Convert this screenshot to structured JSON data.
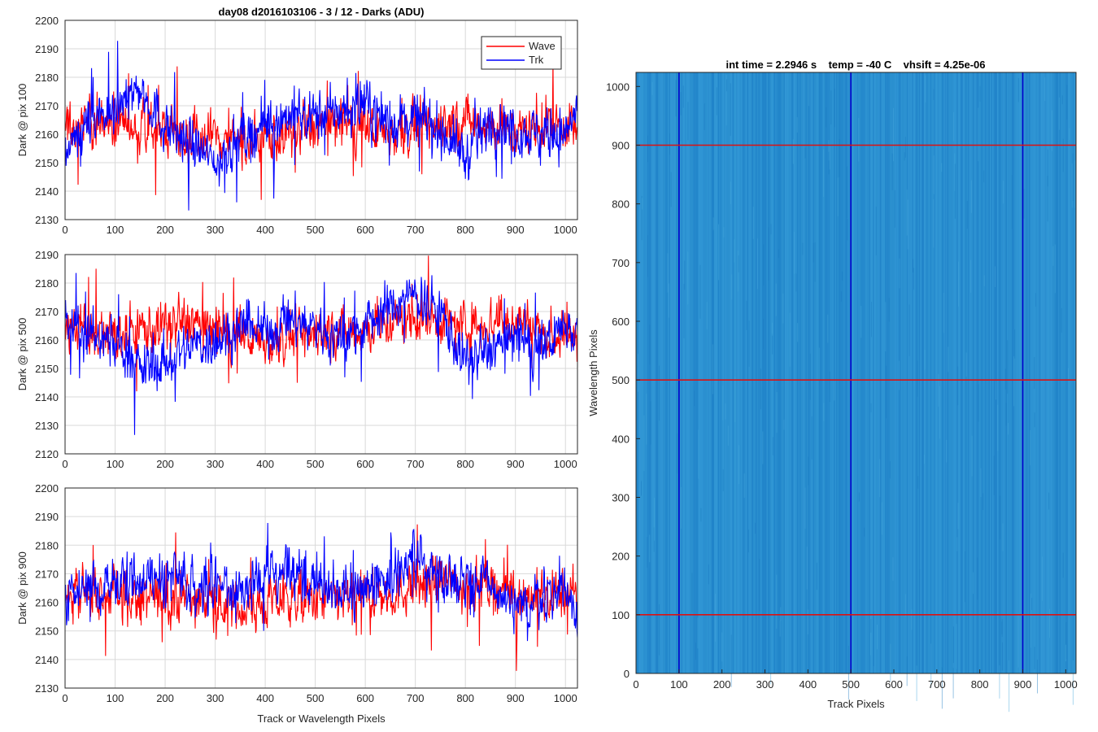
{
  "figure_title": "day08 d2016103106 - 3 / 12 - Darks (ADU)",
  "right_title": "int time = 2.2946 s    temp = -40 C    vhsift = 4.25e-06",
  "legend": {
    "wave": "Wave",
    "trk": "Trk"
  },
  "colors": {
    "wave": "#ff0000",
    "trk": "#0000ff",
    "image_base": "#2a8fd0",
    "grid": "#d9d9d9"
  },
  "chart_data": [
    {
      "type": "line",
      "ylabel": "Dark @ pix 100",
      "xlabel": "",
      "xlim": [
        0,
        1024
      ],
      "ylim": [
        2130,
        2200
      ],
      "xticks": [
        "0",
        "100",
        "200",
        "300",
        "400",
        "500",
        "600",
        "700",
        "800",
        "900",
        "1000"
      ],
      "yticks": [
        "2130",
        "2140",
        "2150",
        "2160",
        "2170",
        "2180",
        "2190",
        "2200"
      ],
      "series": [
        {
          "name": "Wave",
          "x": [
            0,
            50,
            100,
            150,
            200,
            250,
            300,
            350,
            400,
            450,
            500,
            550,
            600,
            650,
            700,
            750,
            800,
            850,
            900,
            950,
            1000,
            1024
          ],
          "values": [
            2162,
            2165,
            2163,
            2160,
            2164,
            2158,
            2160,
            2157,
            2159,
            2160,
            2163,
            2164,
            2162,
            2161,
            2162,
            2163,
            2165,
            2164,
            2160,
            2163,
            2164,
            2160
          ]
        },
        {
          "name": "Trk",
          "x": [
            0,
            50,
            100,
            150,
            200,
            250,
            300,
            350,
            400,
            450,
            500,
            550,
            600,
            650,
            700,
            750,
            800,
            850,
            900,
            950,
            1000,
            1024
          ],
          "values": [
            2153,
            2163,
            2170,
            2176,
            2163,
            2157,
            2150,
            2158,
            2163,
            2167,
            2166,
            2168,
            2170,
            2164,
            2166,
            2162,
            2152,
            2165,
            2162,
            2160,
            2160,
            2170
          ]
        }
      ]
    },
    {
      "type": "line",
      "ylabel": "Dark @ pix 500",
      "xlabel": "",
      "xlim": [
        0,
        1024
      ],
      "ylim": [
        2120,
        2190
      ],
      "xticks": [
        "0",
        "100",
        "200",
        "300",
        "400",
        "500",
        "600",
        "700",
        "800",
        "900",
        "1000"
      ],
      "yticks": [
        "2120",
        "2130",
        "2140",
        "2150",
        "2160",
        "2170",
        "2180",
        "2190"
      ],
      "series": [
        {
          "name": "Wave",
          "x": [
            0,
            50,
            100,
            150,
            200,
            250,
            300,
            350,
            400,
            450,
            500,
            550,
            600,
            650,
            700,
            750,
            800,
            850,
            900,
            950,
            1000,
            1024
          ],
          "values": [
            2163,
            2165,
            2162,
            2164,
            2165,
            2167,
            2163,
            2162,
            2160,
            2161,
            2162,
            2163,
            2164,
            2166,
            2168,
            2167,
            2165,
            2166,
            2168,
            2163,
            2160,
            2162
          ]
        },
        {
          "name": "Trk",
          "x": [
            0,
            50,
            100,
            150,
            200,
            250,
            300,
            350,
            400,
            450,
            500,
            550,
            600,
            650,
            700,
            750,
            800,
            850,
            900,
            950,
            1000,
            1024
          ],
          "values": [
            2165,
            2162,
            2160,
            2150,
            2152,
            2158,
            2160,
            2164,
            2163,
            2167,
            2165,
            2160,
            2165,
            2172,
            2176,
            2170,
            2152,
            2157,
            2161,
            2156,
            2166,
            2163
          ]
        }
      ]
    },
    {
      "type": "line",
      "ylabel": "Dark @ pix 900",
      "xlabel": "Track or Wavelength Pixels",
      "xlim": [
        0,
        1024
      ],
      "ylim": [
        2130,
        2200
      ],
      "xticks": [
        "0",
        "100",
        "200",
        "300",
        "400",
        "500",
        "600",
        "700",
        "800",
        "900",
        "1000"
      ],
      "yticks": [
        "2130",
        "2140",
        "2150",
        "2160",
        "2170",
        "2180",
        "2190",
        "2200"
      ],
      "series": [
        {
          "name": "Wave",
          "x": [
            0,
            50,
            100,
            150,
            200,
            250,
            300,
            350,
            400,
            450,
            500,
            550,
            600,
            650,
            700,
            750,
            800,
            850,
            900,
            950,
            1000,
            1024
          ],
          "values": [
            2165,
            2162,
            2163,
            2160,
            2162,
            2161,
            2160,
            2158,
            2159,
            2161,
            2160,
            2161,
            2162,
            2163,
            2166,
            2168,
            2165,
            2166,
            2163,
            2162,
            2163,
            2162
          ]
        },
        {
          "name": "Trk",
          "x": [
            0,
            50,
            100,
            150,
            200,
            250,
            300,
            350,
            400,
            450,
            500,
            550,
            600,
            650,
            700,
            750,
            800,
            850,
            900,
            950,
            1000,
            1024
          ],
          "values": [
            2162,
            2165,
            2167,
            2168,
            2169,
            2168,
            2166,
            2164,
            2168,
            2170,
            2166,
            2164,
            2166,
            2170,
            2175,
            2170,
            2168,
            2166,
            2156,
            2162,
            2164,
            2158
          ]
        }
      ]
    },
    {
      "type": "heatmap",
      "title": "int time = 2.2946 s    temp = -40 C    vhsift = 4.25e-06",
      "xlabel": "Track Pixels",
      "ylabel": "Wavelength Pixels",
      "xlim": [
        0,
        1024
      ],
      "ylim": [
        0,
        1024
      ],
      "xticks": [
        "0",
        "100",
        "200",
        "300",
        "400",
        "500",
        "600",
        "700",
        "800",
        "900",
        "1000"
      ],
      "yticks": [
        "0",
        "100",
        "200",
        "300",
        "400",
        "500",
        "600",
        "700",
        "800",
        "900",
        "1000"
      ],
      "vlines": [
        100,
        500,
        900
      ],
      "hlines": [
        100,
        500,
        900
      ]
    }
  ]
}
